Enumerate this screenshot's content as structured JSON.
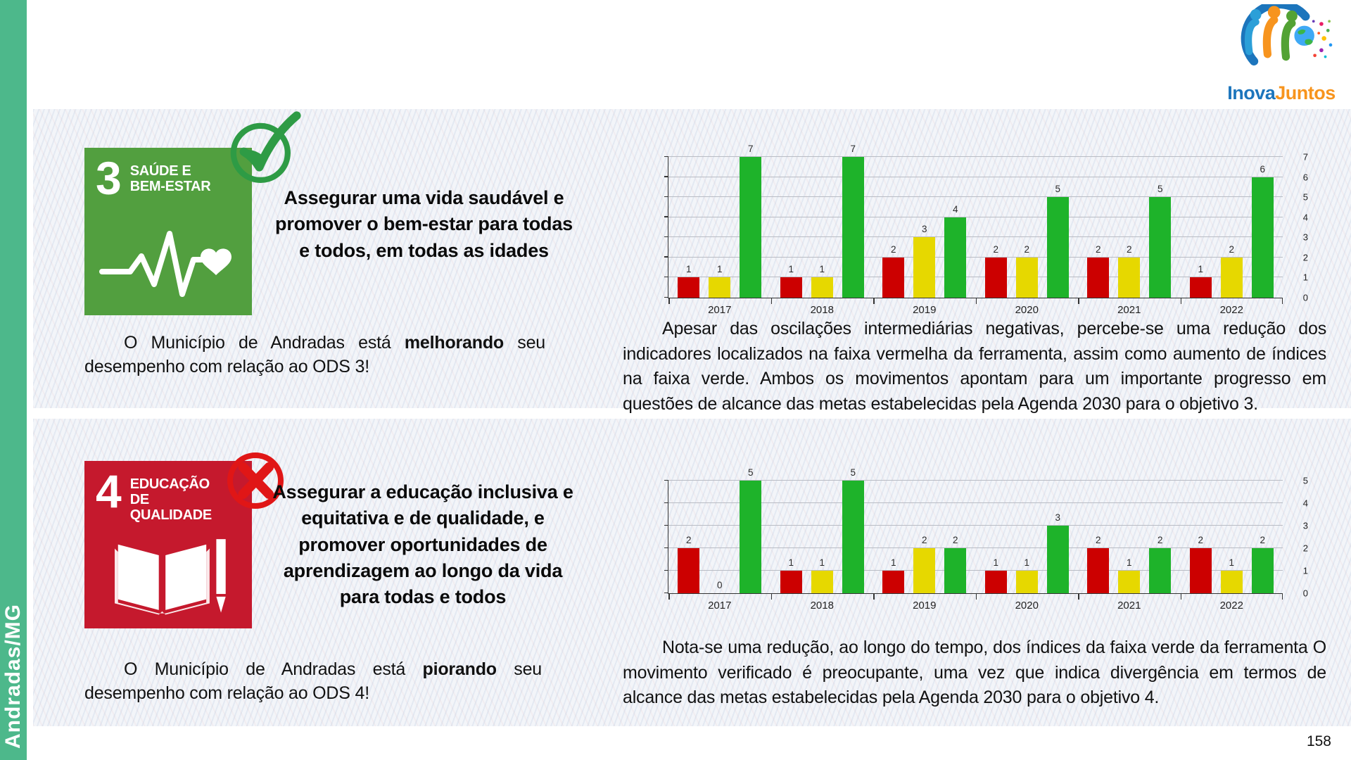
{
  "page": {
    "number": "158"
  },
  "sidebar": {
    "label": "Andradas/MG",
    "color": "#4db88b"
  },
  "logo": {
    "name_part1": "Inova",
    "name_part2": "Juntos",
    "colors": {
      "part1": "#1c75bc",
      "part2": "#f7941d"
    }
  },
  "sections": [
    {
      "ods": {
        "number": "3",
        "title": "SAÚDE E BEM-ESTAR",
        "color": "#529f3f",
        "pictogram": "heartbeat-heart-icon"
      },
      "status_icon": "check-icon",
      "status_color": "#2e9b45",
      "heading": "Assegurar uma vida saudável e promover o bem-estar para todas e todos, em todas as idades",
      "statement": {
        "prefix": "O Município de Andradas está ",
        "emphasis": "melhorando",
        "suffix": " seu desempenho com relação ao ODS 3!"
      },
      "analysis": "Apesar das oscilações intermediárias negativas, percebe-se uma redução dos indicadores localizados na faixa vermelha da ferramenta, assim como aumento de índices na faixa verde. Ambos os movimentos apontam para um importante progresso em questões de alcance das metas estabelecidas pela Agenda 2030 para o objetivo 3."
    },
    {
      "ods": {
        "number": "4",
        "title": "EDUCAÇÃO DE QUALIDADE",
        "color": "#c5192d",
        "pictogram": "open-book-pencil-icon"
      },
      "status_icon": "x-icon",
      "status_color": "#e01616",
      "heading": "Assegurar a educação inclusiva e equitativa e de qualidade, e promover oportunidades de aprendizagem ao longo da vida para todas e todos",
      "statement": {
        "prefix": "O Município de Andradas está ",
        "emphasis": "piorando",
        "suffix": " seu desempenho com relação ao ODS 4!"
      },
      "analysis": "Nota-se uma redução, ao longo do tempo, dos índices da faixa verde da ferramenta O movimento verificado é preocupante, uma vez que indica divergência em termos de alcance das metas estabelecidas pela Agenda 2030 para o objetivo 4."
    }
  ],
  "chart_data": [
    {
      "type": "bar",
      "title": "",
      "categories": [
        "2017",
        "2018",
        "2019",
        "2020",
        "2021",
        "2022"
      ],
      "series": [
        {
          "name": "red-band",
          "color": "#cc0000",
          "values": [
            1,
            1,
            2,
            2,
            2,
            1
          ]
        },
        {
          "name": "yellow-band",
          "color": "#e6d800",
          "values": [
            1,
            1,
            3,
            2,
            2,
            2
          ]
        },
        {
          "name": "green-band",
          "color": "#1eb32a",
          "values": [
            7,
            7,
            4,
            5,
            5,
            6
          ]
        }
      ],
      "ylim": [
        0,
        7
      ],
      "yticks": [
        0,
        1,
        2,
        3,
        4,
        5,
        6,
        7
      ],
      "grid": true,
      "legend": "none",
      "value_labels": true
    },
    {
      "type": "bar",
      "title": "",
      "categories": [
        "2017",
        "2018",
        "2019",
        "2020",
        "2021",
        "2022"
      ],
      "series": [
        {
          "name": "red-band",
          "color": "#cc0000",
          "values": [
            2,
            1,
            1,
            1,
            2,
            2
          ]
        },
        {
          "name": "yellow-band",
          "color": "#e6d800",
          "values": [
            0,
            1,
            2,
            1,
            1,
            1
          ]
        },
        {
          "name": "green-band",
          "color": "#1eb32a",
          "values": [
            5,
            5,
            2,
            3,
            2,
            2
          ]
        }
      ],
      "ylim": [
        0,
        5
      ],
      "yticks": [
        0,
        1,
        2,
        3,
        4,
        5
      ],
      "grid": true,
      "legend": "none",
      "value_labels": true
    }
  ]
}
